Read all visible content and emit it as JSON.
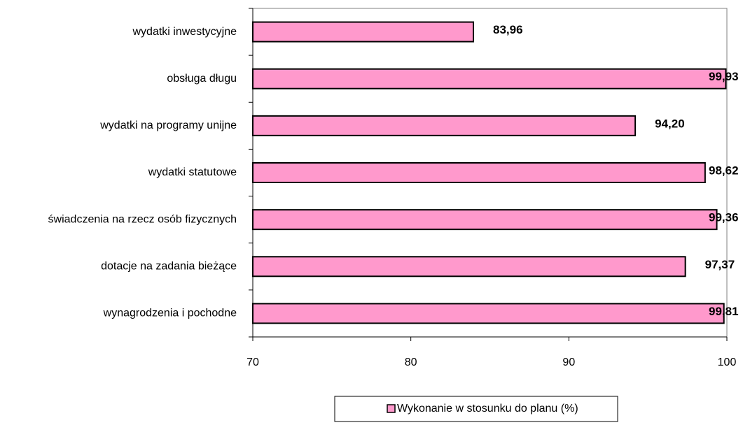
{
  "chart_data": {
    "type": "bar",
    "orientation": "horizontal",
    "categories": [
      "wydatki inwestycyjne",
      "obsługa długu",
      "wydatki na programy unijne",
      "wydatki statutowe",
      "świadczenia na rzecz osób fizycznych",
      "dotacje na zadania bieżące",
      "wynagrodzenia i pochodne"
    ],
    "series": [
      {
        "name": "Wykonanie w stosunku do planu (%)",
        "color": "#ff99cc",
        "values": [
          83.96,
          99.93,
          94.2,
          98.62,
          99.36,
          97.37,
          99.81
        ],
        "value_labels": [
          "83,96",
          "99,93",
          "94,20",
          "98,62",
          "99,36",
          "97,37",
          "99,81"
        ]
      }
    ],
    "xlim": [
      70,
      100
    ],
    "xticks": [
      70,
      80,
      90,
      100
    ],
    "legend": "bottom"
  }
}
